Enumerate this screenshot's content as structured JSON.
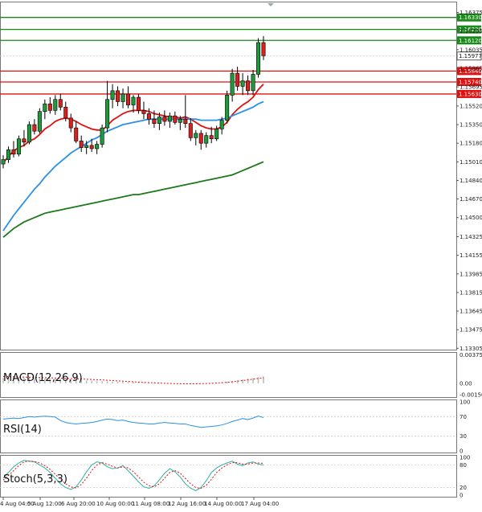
{
  "chart_data": {
    "type": "candlestick",
    "x_ticks": [
      "4 Aug 04:00",
      "5 Aug 12:00",
      "6 Aug 20:00",
      "10 Aug 00:00",
      "11 Aug 08:00",
      "12 Aug 16:00",
      "14 Aug 00:00",
      "17 Aug 04:00"
    ],
    "y_ticks": [
      "1.16375",
      "1.16205",
      "1.16035",
      "1.15865",
      "1.15695",
      "1.15520",
      "1.15350",
      "1.15180",
      "1.15010",
      "1.14840",
      "1.14670",
      "1.14500",
      "1.14325",
      "1.14155",
      "1.13985",
      "1.13815",
      "1.13645",
      "1.13475",
      "1.13305"
    ],
    "ylim": [
      1.133,
      1.1646
    ],
    "current_price": {
      "label": "1.15977",
      "value": 1.15977
    },
    "resistance_levels": [
      {
        "label": "1.16330",
        "value": 1.1633,
        "color": "#1a8a1a"
      },
      {
        "label": "1.16220",
        "value": 1.1622,
        "color": "#1a8a1a"
      },
      {
        "label": "1.16120",
        "value": 1.1612,
        "color": "#1a8a1a"
      }
    ],
    "support_levels": [
      {
        "label": "1.15840",
        "value": 1.1584,
        "color": "#e01010"
      },
      {
        "label": "1.15740",
        "value": 1.1574,
        "color": "#e01010"
      },
      {
        "label": "1.15630",
        "value": 1.1563,
        "color": "#e01010"
      }
    ],
    "candles": [
      [
        1.1499,
        1.1507,
        1.1495,
        1.1503
      ],
      [
        1.1503,
        1.1515,
        1.15,
        1.1512
      ],
      [
        1.1512,
        1.152,
        1.1505,
        1.1508
      ],
      [
        1.1508,
        1.1525,
        1.1506,
        1.1522
      ],
      [
        1.1522,
        1.153,
        1.1515,
        1.1519
      ],
      [
        1.1519,
        1.1538,
        1.1517,
        1.1535
      ],
      [
        1.1535,
        1.154,
        1.1526,
        1.1529
      ],
      [
        1.1529,
        1.155,
        1.1527,
        1.1547
      ],
      [
        1.1547,
        1.1558,
        1.154,
        1.1554
      ],
      [
        1.1554,
        1.156,
        1.1545,
        1.1548
      ],
      [
        1.1548,
        1.1562,
        1.1544,
        1.1558
      ],
      [
        1.1558,
        1.1563,
        1.1548,
        1.1551
      ],
      [
        1.1551,
        1.1556,
        1.1538,
        1.1541
      ],
      [
        1.1541,
        1.1545,
        1.1528,
        1.1532
      ],
      [
        1.1532,
        1.1538,
        1.1518,
        1.152
      ],
      [
        1.152,
        1.1525,
        1.151,
        1.1514
      ],
      [
        1.1514,
        1.152,
        1.1508,
        1.1516
      ],
      [
        1.1516,
        1.1522,
        1.151,
        1.1513
      ],
      [
        1.1513,
        1.152,
        1.1508,
        1.1517
      ],
      [
        1.1517,
        1.1535,
        1.1514,
        1.1532
      ],
      [
        1.1532,
        1.1575,
        1.1528,
        1.1558
      ],
      [
        1.1558,
        1.1572,
        1.155,
        1.1566
      ],
      [
        1.1566,
        1.157,
        1.1552,
        1.1556
      ],
      [
        1.1556,
        1.1568,
        1.155,
        1.1563
      ],
      [
        1.1563,
        1.157,
        1.155,
        1.1553
      ],
      [
        1.1553,
        1.1562,
        1.1546,
        1.156
      ],
      [
        1.156,
        1.1563,
        1.1545,
        1.1548
      ],
      [
        1.1548,
        1.1556,
        1.154,
        1.1545
      ],
      [
        1.1545,
        1.155,
        1.1535,
        1.154
      ],
      [
        1.154,
        1.1548,
        1.1532,
        1.1536
      ],
      [
        1.1536,
        1.1546,
        1.153,
        1.1542
      ],
      [
        1.1542,
        1.1548,
        1.1534,
        1.1538
      ],
      [
        1.1538,
        1.1546,
        1.1532,
        1.1543
      ],
      [
        1.1543,
        1.1547,
        1.1535,
        1.1537
      ],
      [
        1.1537,
        1.1543,
        1.153,
        1.154
      ],
      [
        1.154,
        1.1562,
        1.1532,
        1.1536
      ],
      [
        1.1536,
        1.1541,
        1.152,
        1.1523
      ],
      [
        1.1523,
        1.153,
        1.1516,
        1.1527
      ],
      [
        1.1527,
        1.153,
        1.1512,
        1.1518
      ],
      [
        1.1518,
        1.1528,
        1.1514,
        1.1525
      ],
      [
        1.1525,
        1.1533,
        1.1518,
        1.1522
      ],
      [
        1.1522,
        1.1534,
        1.152,
        1.1531
      ],
      [
        1.1531,
        1.1542,
        1.1526,
        1.1539
      ],
      [
        1.1539,
        1.1566,
        1.1536,
        1.1562
      ],
      [
        1.1562,
        1.1586,
        1.1556,
        1.1582
      ],
      [
        1.1582,
        1.1588,
        1.1566,
        1.157
      ],
      [
        1.157,
        1.1582,
        1.1562,
        1.1575
      ],
      [
        1.1575,
        1.158,
        1.1562,
        1.1566
      ],
      [
        1.1566,
        1.1585,
        1.1562,
        1.1581
      ],
      [
        1.1581,
        1.1614,
        1.1578,
        1.161
      ],
      [
        1.161,
        1.1616,
        1.1594,
        1.1598
      ]
    ],
    "ma_series": [
      {
        "name": "",
        "color": "#e01010",
        "values": [
          1.15,
          1.1506,
          1.1511,
          1.1514,
          1.1516,
          1.152,
          1.1522,
          1.1526,
          1.1531,
          1.1534,
          1.1538,
          1.154,
          1.1541,
          1.154,
          1.1538,
          1.1535,
          1.1533,
          1.1531,
          1.153,
          1.153,
          1.1534,
          1.1539,
          1.1542,
          1.1545,
          1.1547,
          1.1548,
          1.1548,
          1.1548,
          1.1547,
          1.1545,
          1.1544,
          1.1543,
          1.1542,
          1.1542,
          1.1541,
          1.1542,
          1.154,
          1.1537,
          1.1534,
          1.1532,
          1.1531,
          1.1531,
          1.1533,
          1.1537,
          1.1544,
          1.1549,
          1.1553,
          1.1556,
          1.156,
          1.1567,
          1.1572
        ]
      },
      {
        "name": "",
        "color": "#2a90e8",
        "values": [
          1.1438,
          1.1445,
          1.1452,
          1.1458,
          1.1464,
          1.147,
          1.1476,
          1.1481,
          1.1487,
          1.1492,
          1.1497,
          1.1501,
          1.1505,
          1.1509,
          1.1512,
          1.1515,
          1.1518,
          1.1521,
          1.1523,
          1.1526,
          1.1529,
          1.1531,
          1.1533,
          1.1535,
          1.1536,
          1.1537,
          1.1538,
          1.1539,
          1.154,
          1.154,
          1.154,
          1.154,
          1.154,
          1.154,
          1.154,
          1.154,
          1.154,
          1.154,
          1.1539,
          1.1539,
          1.1539,
          1.1539,
          1.154,
          1.1541,
          1.1543,
          1.1545,
          1.1547,
          1.1549,
          1.1551,
          1.1554,
          1.1556
        ]
      },
      {
        "name": "",
        "color": "#1a7a1a",
        "values": [
          1.1432,
          1.1436,
          1.144,
          1.1443,
          1.1446,
          1.1448,
          1.145,
          1.1452,
          1.1454,
          1.1455,
          1.1456,
          1.1457,
          1.1458,
          1.1459,
          1.146,
          1.1461,
          1.1462,
          1.1463,
          1.1464,
          1.1465,
          1.1466,
          1.1467,
          1.1468,
          1.1469,
          1.147,
          1.1471,
          1.1471,
          1.1472,
          1.1473,
          1.1474,
          1.1475,
          1.1476,
          1.1477,
          1.1478,
          1.1479,
          1.148,
          1.1481,
          1.1482,
          1.1483,
          1.1484,
          1.1485,
          1.1486,
          1.1487,
          1.1488,
          1.1489,
          1.1491,
          1.1493,
          1.1495,
          1.1497,
          1.1499,
          1.1501
        ]
      }
    ],
    "macd": {
      "label": "MACD(12,26,9)",
      "y_ticks": [
        "0.003756",
        "0.00",
        "-0.001508"
      ],
      "ylim": [
        -0.0016,
        0.0038
      ],
      "histogram": [
        0.0007,
        0.00075,
        0.0008,
        0.00078,
        0.00076,
        0.00074,
        0.0007,
        0.00068,
        0.00066,
        0.00064,
        0.0006,
        0.00058,
        0.00055,
        0.0005,
        0.00046,
        0.00042,
        0.00038,
        0.00034,
        0.0003,
        0.00028,
        0.00026,
        0.00024,
        0.00022,
        0.0002,
        0.00018,
        0.00016,
        0.00014,
        0.00012,
        0.0001,
        8e-05,
        6e-05,
        4e-05,
        2e-05,
        0.0,
        -2e-05,
        -4e-05,
        -6e-05,
        -5e-05,
        -3e-05,
        0.0,
        5e-05,
        0.0001,
        0.00015,
        0.00022,
        0.0003,
        0.0004,
        0.0005,
        0.0006,
        0.0007,
        0.0008,
        0.0009
      ],
      "signal": [
        0.0009,
        0.00088,
        0.00086,
        0.00084,
        0.00082,
        0.0008,
        0.00078,
        0.00076,
        0.00074,
        0.00072,
        0.0007,
        0.00068,
        0.00065,
        0.00062,
        0.0006,
        0.00057,
        0.00054,
        0.0005,
        0.00047,
        0.00044,
        0.0004,
        0.00036,
        0.00032,
        0.00028,
        0.00024,
        0.0002,
        0.00016,
        0.00012,
        9e-05,
        6e-05,
        3e-05,
        0.0,
        -2e-05,
        -4e-05,
        -5e-05,
        -6e-05,
        -6e-05,
        -5e-05,
        -4e-05,
        -2e-05,
        0.0,
        4e-05,
        8e-05,
        0.00013,
        0.0002,
        0.00028,
        0.00036,
        0.00045,
        0.00054,
        0.00064,
        0.00074
      ]
    },
    "rsi": {
      "label": "RSI(14)",
      "y_ticks": [
        "100",
        "70",
        "30",
        "0"
      ],
      "ylim": [
        0,
        100
      ],
      "values": [
        65,
        66,
        67,
        66,
        68,
        70,
        69,
        70,
        71,
        70,
        69,
        62,
        58,
        56,
        55,
        56,
        57,
        58,
        60,
        63,
        65,
        64,
        62,
        63,
        60,
        58,
        57,
        56,
        55,
        55,
        57,
        58,
        57,
        56,
        55,
        55,
        52,
        50,
        48,
        49,
        50,
        51,
        53,
        56,
        60,
        63,
        66,
        64,
        67,
        71,
        68
      ]
    },
    "stoch": {
      "label": "Stoch(5,3,3)",
      "y_ticks": [
        "100",
        "80",
        "20",
        "0"
      ],
      "ylim": [
        0,
        100
      ],
      "k": [
        45,
        60,
        75,
        85,
        92,
        90,
        88,
        80,
        72,
        60,
        45,
        30,
        20,
        15,
        22,
        40,
        62,
        80,
        88,
        85,
        75,
        70,
        72,
        78,
        65,
        50,
        35,
        22,
        18,
        25,
        40,
        58,
        70,
        62,
        48,
        30,
        18,
        12,
        20,
        38,
        60,
        72,
        80,
        85,
        90,
        82,
        78,
        85,
        88,
        82,
        80
      ],
      "d": [
        40,
        52,
        65,
        78,
        88,
        90,
        89,
        85,
        78,
        68,
        55,
        42,
        30,
        22,
        19,
        28,
        45,
        65,
        80,
        86,
        82,
        76,
        72,
        75,
        72,
        62,
        48,
        34,
        25,
        22,
        30,
        45,
        60,
        65,
        58,
        44,
        30,
        20,
        18,
        26,
        42,
        60,
        72,
        80,
        86,
        86,
        82,
        82,
        85,
        85,
        84
      ]
    }
  }
}
